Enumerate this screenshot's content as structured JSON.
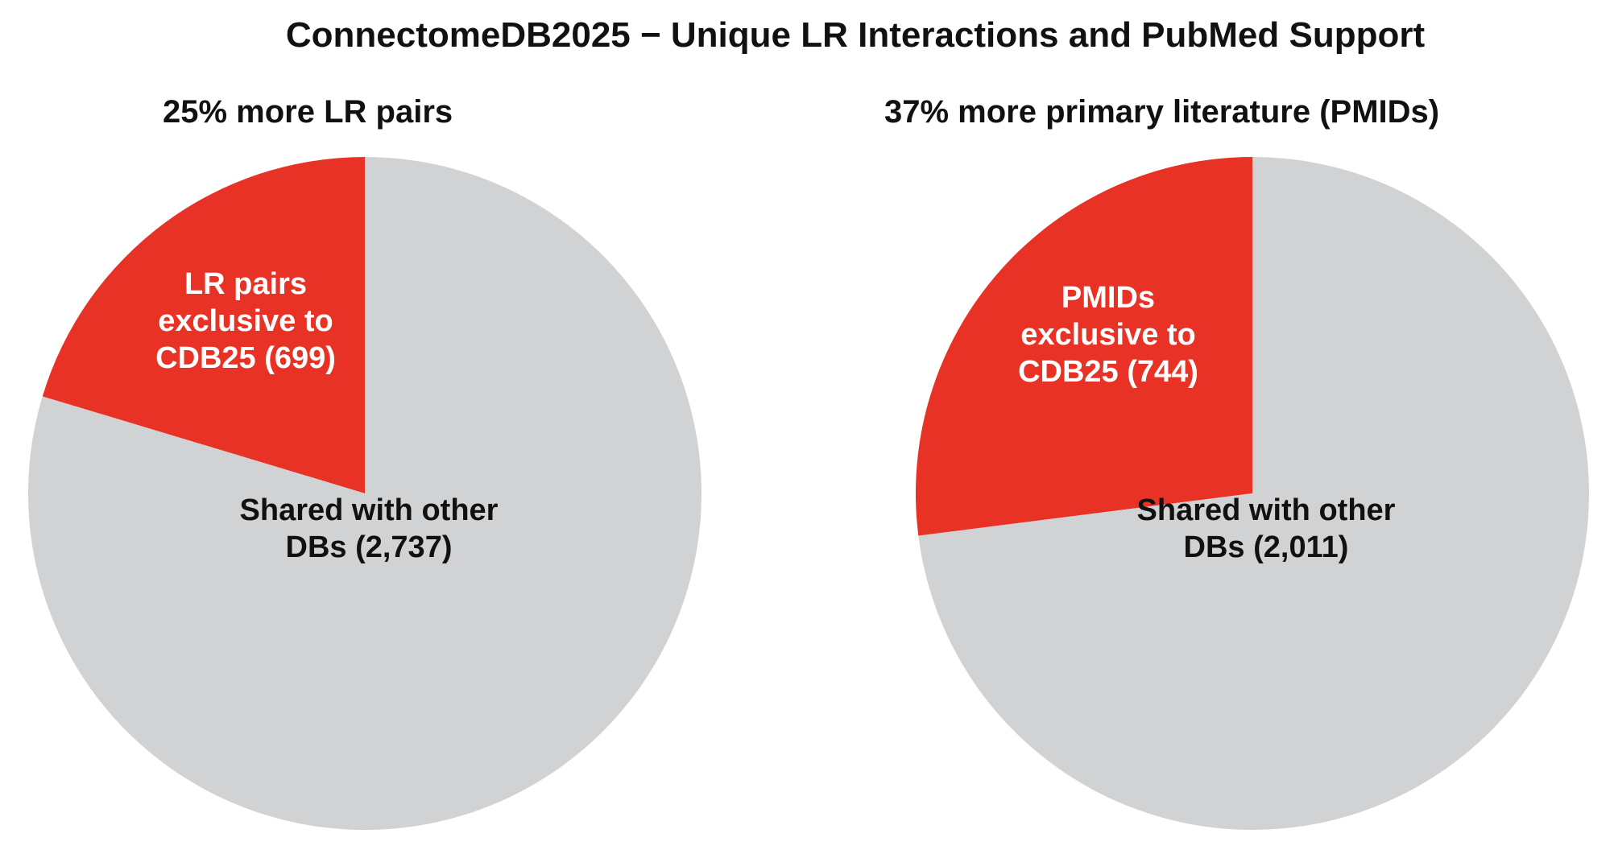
{
  "title": "ConnectomeDB2025 − Unique LR Interactions and PubMed Support",
  "colors": {
    "exclusive": "#E83226",
    "shared": "#D1D2D4",
    "text_dark": "#111111",
    "text_light": "#FFFFFF"
  },
  "chart_data": [
    {
      "type": "pie",
      "title": "25% more LR pairs",
      "slices": [
        {
          "name": "exclusive",
          "label_lines": [
            "LR pairs",
            "exclusive to",
            "CDB25 (699)"
          ],
          "value": 699,
          "color": "#E83226"
        },
        {
          "name": "shared",
          "label_lines": [
            "Shared with other",
            "DBs (2,737)"
          ],
          "value": 2737,
          "color": "#D1D2D4"
        }
      ]
    },
    {
      "type": "pie",
      "title": "37% more primary literature (PMIDs)",
      "slices": [
        {
          "name": "exclusive",
          "label_lines": [
            "PMIDs",
            "exclusive to",
            "CDB25 (744)"
          ],
          "value": 744,
          "color": "#E83226"
        },
        {
          "name": "shared",
          "label_lines": [
            "Shared with other",
            "DBs (2,011)"
          ],
          "value": 2011,
          "color": "#D1D2D4"
        }
      ]
    }
  ]
}
